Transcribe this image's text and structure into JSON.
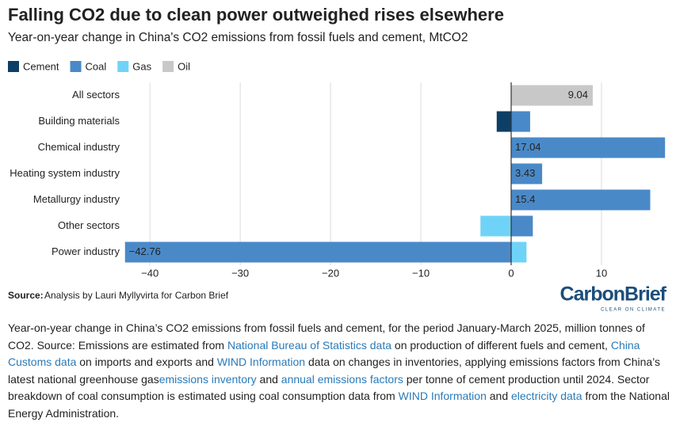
{
  "chart_data": {
    "type": "hbar_stacked",
    "title": "Falling CO2 due to clean power outweighed rises elsewhere",
    "subtitle": "Year-on-year change in China's CO2 emissions from fossil fuels and cement, MtCO2",
    "categories": [
      "All sectors",
      "Building materials",
      "Chemical industry",
      "Heating system industry",
      "Metallurgy industry",
      "Other sectors",
      "Power industry"
    ],
    "series": [
      {
        "name": "Cement",
        "color": "#0d3f66",
        "values": [
          null,
          -1.6,
          null,
          null,
          null,
          null,
          null
        ]
      },
      {
        "name": "Coal",
        "color": "#4a89c8",
        "values": [
          null,
          2.1,
          17.04,
          3.43,
          15.4,
          2.4,
          -42.76
        ],
        "value_labels": [
          null,
          null,
          "17.04",
          "3.43",
          "15.4",
          null,
          "−42.76"
        ]
      },
      {
        "name": "Gas",
        "color": "#6fd3f7",
        "values": [
          null,
          null,
          null,
          null,
          null,
          -3.4,
          1.7
        ]
      },
      {
        "name": "Oil",
        "color": "#c8c8c8",
        "values": [
          9.04,
          null,
          null,
          null,
          null,
          null,
          null
        ],
        "value_labels": [
          "9.04",
          null,
          null,
          null,
          null,
          null,
          null
        ]
      }
    ],
    "xlim": [
      -43,
      17.2
    ],
    "xticks": [
      {
        "value": -40,
        "label": "−40"
      },
      {
        "value": -30,
        "label": "−30"
      },
      {
        "value": -20,
        "label": "−20"
      },
      {
        "value": -10,
        "label": "−10"
      },
      0,
      10
    ],
    "grid": true,
    "legend": "top-left"
  },
  "source": {
    "label": "Source:",
    "text": "Analysis by Lauri Myllyvirta for Carbon Brief"
  },
  "logo": {
    "name": "CarbonBrief",
    "tagline": "CLEAR ON CLIMATE"
  },
  "description": [
    {
      "text": "Year-on-year change in China’s CO2 emissions from fossil fuels and cement, for the period January-March 2025, million tonnes of CO2. Source: Emissions are estimated from ",
      "link": false
    },
    {
      "text": "National Bureau of Statistics data",
      "link": true
    },
    {
      "text": " on production of different fuels and cement, ",
      "link": false
    },
    {
      "text": "China Customs data",
      "link": true
    },
    {
      "text": " on imports and exports and ",
      "link": false
    },
    {
      "text": "WIND Information",
      "link": true
    },
    {
      "text": " data on changes in inventories, applying emissions factors from China’s latest national greenhouse gas",
      "link": false
    },
    {
      "text": "emissions inventory",
      "link": true
    },
    {
      "text": " and ",
      "link": false
    },
    {
      "text": "annual emissions factors",
      "link": true
    },
    {
      "text": " per tonne of cement production until 2024. Sector breakdown of coal consumption is estimated using coal consumption data from ",
      "link": false
    },
    {
      "text": "WIND Information",
      "link": true
    },
    {
      "text": " and ",
      "link": false
    },
    {
      "text": "electricity data",
      "link": true
    },
    {
      "text": " from the National Energy Administration.",
      "link": false
    }
  ]
}
